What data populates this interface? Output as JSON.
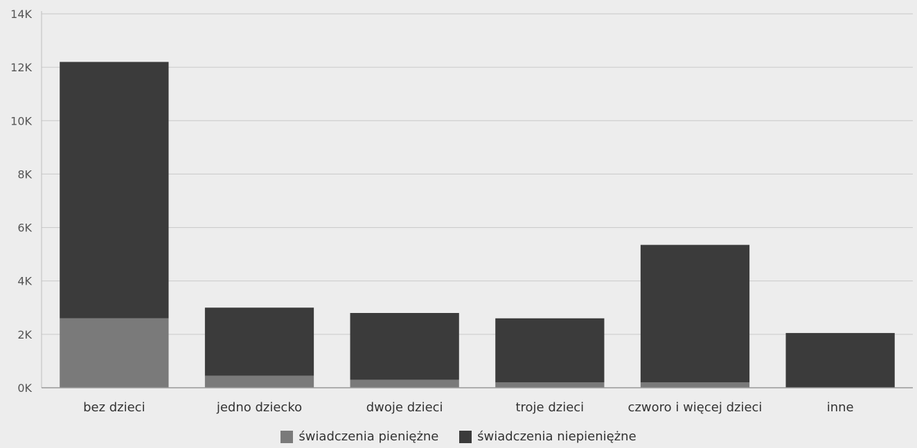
{
  "chart_data": {
    "type": "bar",
    "stacked": true,
    "title": "",
    "xlabel": "",
    "ylabel": "",
    "categories": [
      "bez dzieci",
      "jedno dziecko",
      "dwoje dzieci",
      "troje dzieci",
      "czworo i więcej dzieci",
      "inne"
    ],
    "series": [
      {
        "name": "świadczenia pieniężne",
        "color": "#7a7a7a",
        "values": [
          2600,
          450,
          300,
          200,
          200,
          0
        ]
      },
      {
        "name": "świadczenia niepieniężne",
        "color": "#3b3b3b",
        "values": [
          9600,
          2550,
          2500,
          2400,
          5150,
          2050
        ]
      }
    ],
    "ylim": [
      0,
      14000
    ],
    "yticks": [
      {
        "value": 0,
        "label": "0K"
      },
      {
        "value": 2000,
        "label": "2K"
      },
      {
        "value": 4000,
        "label": "4K"
      },
      {
        "value": 6000,
        "label": "6K"
      },
      {
        "value": 8000,
        "label": "8K"
      },
      {
        "value": 10000,
        "label": "10K"
      },
      {
        "value": 12000,
        "label": "12K"
      },
      {
        "value": 14000,
        "label": "14K"
      }
    ],
    "grid": true,
    "legend_position": "bottom-center"
  }
}
